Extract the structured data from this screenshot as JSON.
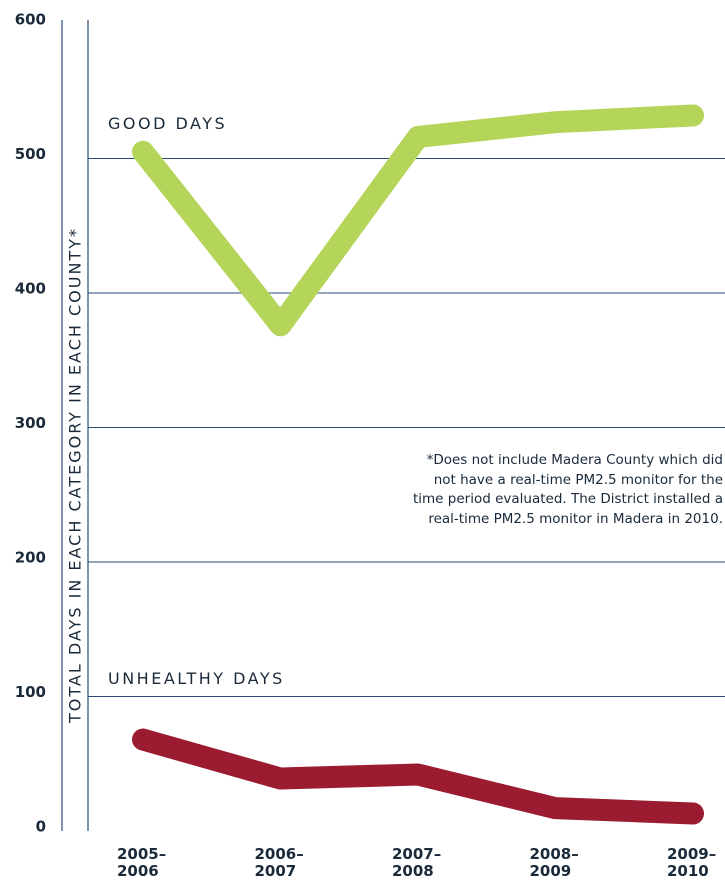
{
  "chart_data": {
    "type": "line",
    "y_label": "TOTAL DAYS IN EACH CATEGORY IN EACH COUNTY*",
    "annotation": [
      "*Does not include Madera County which did",
      "not have a real-time PM2.5 monitor for the",
      "time period evaluated. The District installed a",
      "real-time PM2.5 monitor in Madera in 2010."
    ],
    "categories": [
      "2005–2006",
      "2006–2007",
      "2007–2008",
      "2008–2009",
      "2009–2010"
    ],
    "series": [
      {
        "name": "GOOD DAYS",
        "color": "#b5d55a",
        "values": [
          505,
          376,
          516,
          527,
          532
        ]
      },
      {
        "name": "UNHEALTHY DAYS",
        "color": "#9b1b30",
        "values": [
          68,
          39,
          42,
          17,
          13
        ]
      }
    ],
    "ylim": [
      0,
      600
    ],
    "yticks": [
      0,
      100,
      200,
      300,
      400,
      500,
      600
    ],
    "grid": true
  }
}
